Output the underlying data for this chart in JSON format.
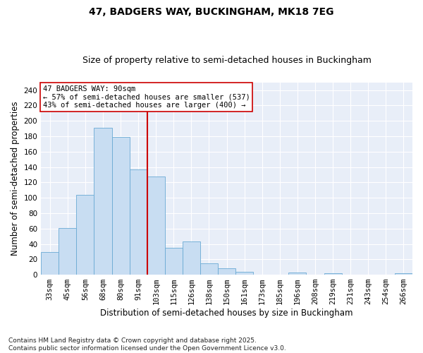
{
  "title": "47, BADGERS WAY, BUCKINGHAM, MK18 7EG",
  "subtitle": "Size of property relative to semi-detached houses in Buckingham",
  "xlabel": "Distribution of semi-detached houses by size in Buckingham",
  "ylabel": "Number of semi-detached properties",
  "categories": [
    "33sqm",
    "45sqm",
    "56sqm",
    "68sqm",
    "80sqm",
    "91sqm",
    "103sqm",
    "115sqm",
    "126sqm",
    "138sqm",
    "150sqm",
    "161sqm",
    "173sqm",
    "185sqm",
    "196sqm",
    "208sqm",
    "219sqm",
    "231sqm",
    "243sqm",
    "254sqm",
    "266sqm"
  ],
  "values": [
    29,
    61,
    104,
    191,
    179,
    137,
    128,
    35,
    43,
    15,
    8,
    4,
    0,
    0,
    3,
    0,
    2,
    0,
    0,
    0,
    2
  ],
  "bar_color": "#c8ddf2",
  "bar_edge_color": "#6aaad4",
  "vline_x": 5.5,
  "vline_color": "#cc0000",
  "annotation_text": "47 BADGERS WAY: 90sqm\n← 57% of semi-detached houses are smaller (537)\n43% of semi-detached houses are larger (400) →",
  "annotation_box_color": "#ffffff",
  "annotation_box_edge": "#cc0000",
  "ylim": [
    0,
    250
  ],
  "yticks": [
    0,
    20,
    40,
    60,
    80,
    100,
    120,
    140,
    160,
    180,
    200,
    220,
    240
  ],
  "background_color": "#e8eef8",
  "footer_text": "Contains HM Land Registry data © Crown copyright and database right 2025.\nContains public sector information licensed under the Open Government Licence v3.0.",
  "title_fontsize": 10,
  "subtitle_fontsize": 9,
  "xlabel_fontsize": 8.5,
  "ylabel_fontsize": 8.5,
  "tick_fontsize": 7.5,
  "annotation_fontsize": 7.5,
  "footer_fontsize": 6.5
}
